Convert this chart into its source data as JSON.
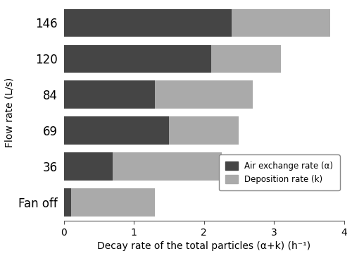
{
  "categories": [
    "Fan off",
    "36",
    "69",
    "84",
    "120",
    "146"
  ],
  "air_exchange": [
    0.1,
    0.7,
    1.5,
    1.3,
    2.1,
    2.4
  ],
  "deposition": [
    1.2,
    1.55,
    1.0,
    1.4,
    1.0,
    1.4
  ],
  "air_exchange_color": "#454545",
  "deposition_color": "#aaaaaa",
  "xlabel": "Decay rate of the total particles (α+k) (h⁻¹)",
  "ylabel": "Flow rate (L/s)",
  "legend_air": "Air exchange rate (α)",
  "legend_dep": "Deposition rate (k)",
  "xlim": [
    0,
    4
  ],
  "xticks": [
    0,
    1,
    2,
    3,
    4
  ],
  "bar_height": 0.78,
  "background_color": "#ffffff",
  "figsize": [
    5.0,
    3.63
  ],
  "dpi": 100
}
